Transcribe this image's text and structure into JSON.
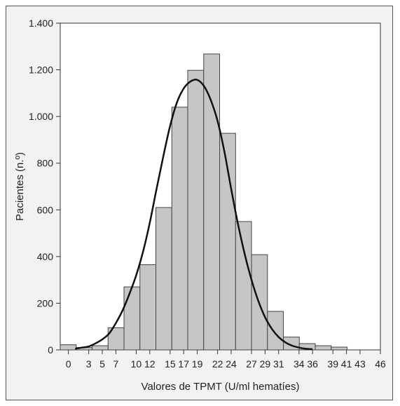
{
  "chart_data": {
    "type": "bar",
    "subtype": "histogram-with-density-curve",
    "xlabel": "Valores de TPMT (U/ml hematíes)",
    "ylabel": "Pacientes (n.º)",
    "xlim": [
      -1.2,
      46
    ],
    "ylim": [
      0,
      1400
    ],
    "x_ticks": [
      0,
      3,
      5,
      7,
      10,
      12,
      15,
      17,
      19,
      22,
      24,
      27,
      29,
      31,
      34,
      36,
      39,
      41,
      43,
      46
    ],
    "y_ticks": [
      0,
      200,
      400,
      600,
      800,
      1000,
      1200,
      1400
    ],
    "y_tick_labels": [
      "0",
      "200",
      "400",
      "600",
      "800",
      "1.000",
      "1.200",
      "1.400"
    ],
    "bin_width": 2.35,
    "bins": [
      {
        "start": -1.2,
        "value": 22
      },
      {
        "start": 1.15,
        "value": 10
      },
      {
        "start": 3.5,
        "value": 18
      },
      {
        "start": 5.85,
        "value": 95
      },
      {
        "start": 8.2,
        "value": 270
      },
      {
        "start": 10.55,
        "value": 365
      },
      {
        "start": 12.9,
        "value": 610
      },
      {
        "start": 15.25,
        "value": 1040
      },
      {
        "start": 17.6,
        "value": 1198
      },
      {
        "start": 19.95,
        "value": 1268
      },
      {
        "start": 22.3,
        "value": 928
      },
      {
        "start": 24.65,
        "value": 550
      },
      {
        "start": 27.0,
        "value": 408
      },
      {
        "start": 29.35,
        "value": 165
      },
      {
        "start": 31.7,
        "value": 55
      },
      {
        "start": 34.05,
        "value": 27
      },
      {
        "start": 36.4,
        "value": 18
      },
      {
        "start": 38.75,
        "value": 12
      }
    ],
    "curve": {
      "x": [
        1,
        2,
        3,
        4,
        5,
        6,
        7,
        8,
        9,
        10,
        11,
        12,
        13,
        14,
        15,
        16,
        17,
        18,
        19,
        20,
        21,
        22,
        23,
        24,
        25,
        26,
        27,
        28,
        29,
        30,
        31,
        32,
        33,
        34,
        35,
        36
      ],
      "y": [
        5,
        10,
        15,
        28,
        45,
        70,
        115,
        170,
        240,
        320,
        420,
        545,
        690,
        830,
        960,
        1060,
        1120,
        1150,
        1157,
        1130,
        1070,
        980,
        850,
        690,
        540,
        410,
        300,
        210,
        140,
        90,
        55,
        32,
        18,
        10,
        5,
        3
      ]
    },
    "grid": false,
    "bar_color": "#c6c6c6",
    "bar_edge": "#444444",
    "curve_color": "#111111",
    "plot_background": "#ffffff",
    "frame_background": "#f2f2f2"
  }
}
